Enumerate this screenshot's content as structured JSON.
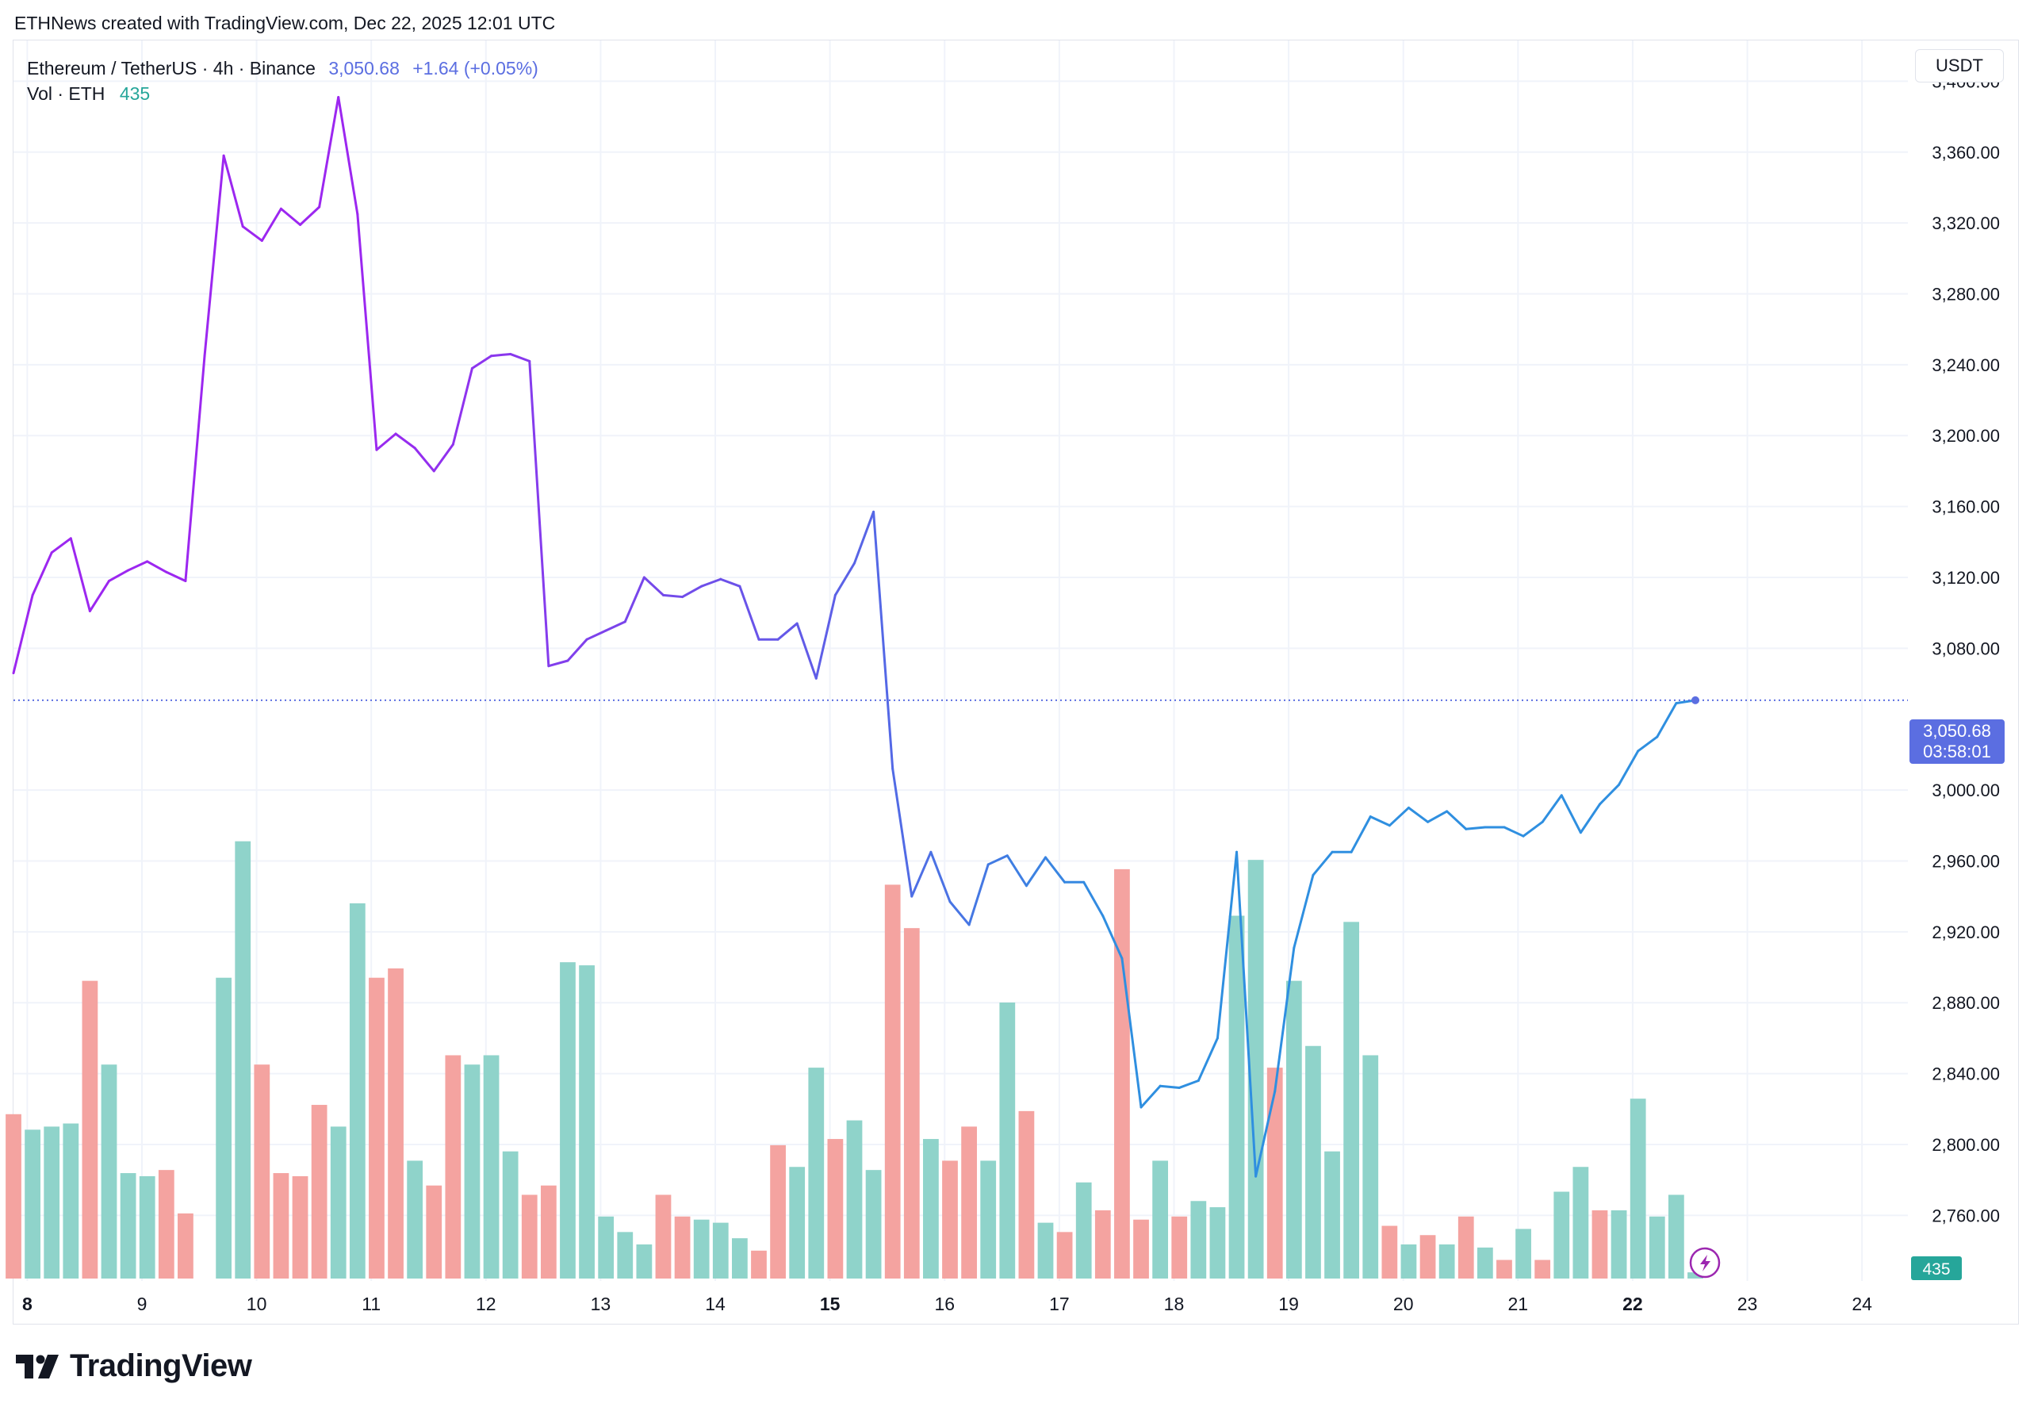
{
  "caption": "ETHNews created with TradingView.com, Dec 22, 2025 12:01 UTC",
  "legend": {
    "symbol": "Ethereum / TetherUS · 4h · Binance",
    "price": "3,050.68",
    "change": "+1.64 (+0.05%)",
    "vol_label": "Vol · ETH",
    "vol_value": "435"
  },
  "currency_button": "USDT",
  "last_price_label": "3,050.68",
  "countdown_label": "03:58:01",
  "volume_badge": "435",
  "brand": "TradingView",
  "colors": {
    "line_purple": "#9c27f0",
    "line_indigo": "#6557e8",
    "line_blue": "#2f8fe0",
    "vol_up": "#8fd3ca",
    "vol_down": "#f4a3a0",
    "price_badge": "#5b6ee1",
    "vol_badge": "#26a69a",
    "grid": "#f0f3fa",
    "icon_accent": "#9c27b0"
  },
  "chart_data": {
    "type": "line",
    "ylabel": "",
    "ylim": [
      2723,
      3423
    ],
    "yticks": [
      3400,
      3360,
      3320,
      3280,
      3240,
      3200,
      3160,
      3120,
      3080,
      3000,
      2960,
      2920,
      2880,
      2840,
      2800,
      2760
    ],
    "ytick_labels": [
      "3,400.00",
      "3,360.00",
      "3,320.00",
      "3,280.00",
      "3,240.00",
      "3,200.00",
      "3,160.00",
      "3,120.00",
      "3,080.00",
      "3,000.00",
      "2,960.00",
      "2,920.00",
      "2,880.00",
      "2,840.00",
      "2,800.00",
      "2,760.00"
    ],
    "x_range_days": [
      7.88,
      24.4
    ],
    "x_ticks": [
      {
        "day": 8,
        "label": "8",
        "bold": true
      },
      {
        "day": 9,
        "label": "9",
        "bold": false
      },
      {
        "day": 10,
        "label": "10",
        "bold": false
      },
      {
        "day": 11,
        "label": "11",
        "bold": false
      },
      {
        "day": 12,
        "label": "12",
        "bold": false
      },
      {
        "day": 13,
        "label": "13",
        "bold": false
      },
      {
        "day": 14,
        "label": "14",
        "bold": false
      },
      {
        "day": 15,
        "label": "15",
        "bold": true
      },
      {
        "day": 16,
        "label": "16",
        "bold": false
      },
      {
        "day": 17,
        "label": "17",
        "bold": false
      },
      {
        "day": 18,
        "label": "18",
        "bold": false
      },
      {
        "day": 19,
        "label": "19",
        "bold": false
      },
      {
        "day": 20,
        "label": "20",
        "bold": false
      },
      {
        "day": 21,
        "label": "21",
        "bold": false
      },
      {
        "day": 22,
        "label": "22",
        "bold": true
      },
      {
        "day": 23,
        "label": "23",
        "bold": false
      },
      {
        "day": 24,
        "label": "24",
        "bold": false
      }
    ],
    "last_price": 3050.68,
    "series": [
      {
        "name": "Ethereum / TetherUS",
        "interval_hours": 4,
        "x_start_day": 7.88,
        "values": [
          3066,
          3110,
          3134,
          3142,
          3101,
          3118,
          3124,
          3129,
          3123,
          3118,
          3245,
          3358,
          3318,
          3310,
          3328,
          3319,
          3329,
          3391,
          3325,
          3192,
          3201,
          3193,
          3180,
          3195,
          3238,
          3245,
          3246,
          3242,
          3070,
          3073,
          3085,
          3090,
          3095,
          3120,
          3110,
          3109,
          3115,
          3119,
          3115,
          3085,
          3085,
          3094,
          3063,
          3110,
          3128,
          3157,
          3012,
          2940,
          2965,
          2937,
          2924,
          2958,
          2963,
          2946,
          2962,
          2948,
          2948,
          2929,
          2905,
          2821,
          2833,
          2832,
          2836,
          2860,
          2965,
          2782,
          2830,
          2911,
          2952,
          2965,
          2965,
          2985,
          2980,
          2990,
          2982,
          2988,
          2978,
          2979,
          2979,
          2974,
          2982,
          2997,
          2976,
          2992,
          3003,
          3022,
          3030,
          3049,
          3050.68
        ]
      }
    ],
    "volume": {
      "name": "Vol · ETH",
      "x_start_day": 7.88,
      "values": [
        53,
        48,
        49,
        50,
        96,
        69,
        34,
        33,
        35,
        21,
        0,
        97,
        141,
        69,
        34,
        33,
        56,
        49,
        121,
        97,
        100,
        38,
        30,
        72,
        69,
        72,
        41,
        27,
        30,
        102,
        101,
        20,
        15,
        11,
        27,
        20,
        19,
        18,
        13,
        9,
        43,
        36,
        68,
        45,
        51,
        35,
        127,
        113,
        45,
        38,
        49,
        38,
        89,
        54,
        18,
        15,
        31,
        22,
        132,
        19,
        38,
        20,
        25,
        23,
        117,
        135,
        68,
        96,
        75,
        41,
        115,
        72,
        17,
        11,
        14,
        11,
        20,
        10,
        6,
        16,
        6,
        28,
        36,
        22,
        22,
        58,
        20,
        27,
        2
      ],
      "direction": [
        "d",
        "u",
        "u",
        "u",
        "d",
        "u",
        "u",
        "u",
        "d",
        "d",
        "u",
        "u",
        "u",
        "d",
        "d",
        "d",
        "d",
        "u",
        "u",
        "d",
        "d",
        "u",
        "d",
        "d",
        "u",
        "u",
        "u",
        "d",
        "d",
        "u",
        "u",
        "u",
        "u",
        "u",
        "d",
        "d",
        "u",
        "u",
        "u",
        "d",
        "d",
        "u",
        "u",
        "d",
        "u",
        "u",
        "d",
        "d",
        "u",
        "d",
        "d",
        "u",
        "u",
        "d",
        "u",
        "d",
        "u",
        "d",
        "d",
        "d",
        "u",
        "d",
        "u",
        "u",
        "u",
        "u",
        "d",
        "u",
        "u",
        "u",
        "u",
        "u",
        "d",
        "u",
        "d",
        "u",
        "d",
        "u",
        "d",
        "u",
        "d",
        "u",
        "u",
        "d",
        "u",
        "u",
        "u",
        "u",
        "u"
      ],
      "ylim": [
        0,
        400
      ]
    }
  }
}
